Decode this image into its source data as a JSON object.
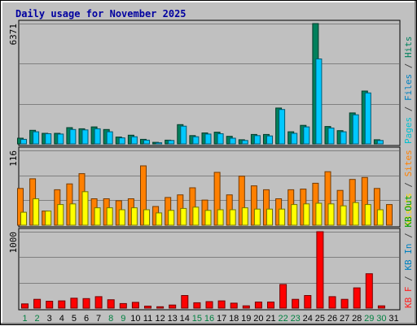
{
  "chart_data": {
    "type": "bar",
    "title": "Daily usage for November 2025",
    "x": [
      1,
      2,
      3,
      4,
      5,
      6,
      7,
      8,
      9,
      10,
      11,
      12,
      13,
      14,
      15,
      16,
      17,
      18,
      19,
      20,
      21,
      22,
      23,
      24,
      25,
      26,
      27,
      28,
      29,
      30,
      31
    ],
    "weekend_days": [
      1,
      2,
      8,
      9,
      15,
      16,
      22,
      23,
      29,
      30
    ],
    "panels": [
      {
        "id": "hits_panel",
        "ymax_label": "6371",
        "ylim": [
          0,
          6371
        ],
        "legend": [
          "Pages",
          "/",
          "Files",
          "/",
          "Hits"
        ],
        "legend_colors": [
          "#00c0d0",
          "#404040",
          "#0080c0",
          "#404040",
          "#00805c"
        ],
        "series": [
          {
            "name": "Hits",
            "color": "#00805c",
            "values": [
              300,
              720,
              560,
              560,
              860,
              800,
              900,
              760,
              360,
              460,
              240,
              80,
              200,
              1020,
              440,
              580,
              620,
              400,
              220,
              500,
              500,
              1900,
              640,
              980,
              6371,
              920,
              700,
              1640,
              2800,
              220,
              0
            ]
          },
          {
            "name": "Files",
            "color": "#00c8ff",
            "values": [
              240,
              640,
              540,
              520,
              760,
              740,
              800,
              640,
              320,
              380,
              200,
              60,
              180,
              940,
              380,
              520,
              540,
              300,
              180,
              440,
              420,
              1820,
              560,
              900,
              4500,
              840,
              640,
              1540,
              2700,
              180,
              0
            ]
          }
        ]
      },
      {
        "id": "visits_panel",
        "ymax_label": "116",
        "ylim": [
          0,
          116
        ],
        "legend": [
          "Visits",
          "/",
          "Sites"
        ],
        "legend_colors": [
          "#ffd700",
          "#404040",
          "#ff8000"
        ],
        "series": [
          {
            "name": "Sites",
            "color": "#ff8000",
            "values": [
              57,
              72,
              22,
              55,
              64,
              80,
              41,
              41,
              38,
              41,
              92,
              29,
              43,
              47,
              58,
              39,
              82,
              47,
              76,
              61,
              55,
              41,
              55,
              56,
              65,
              83,
              54,
              71,
              74,
              57,
              32
            ]
          },
          {
            "name": "Visits",
            "color": "#ffff00",
            "values": [
              20,
              41,
              22,
              32,
              33,
              52,
              27,
              27,
              24,
              27,
              24,
              19,
              23,
              26,
              28,
              23,
              24,
              24,
              27,
              25,
              25,
              25,
              32,
              33,
              34,
              33,
              30,
              35,
              32,
              24,
              0
            ]
          }
        ]
      },
      {
        "id": "kb_panel",
        "ymax_label": "1000",
        "ylim": [
          0,
          1000
        ],
        "legend": [
          "KB",
          "F",
          "/",
          "KB",
          "In",
          "/",
          "KB",
          "Out"
        ],
        "legend_colors": [
          "#ff2020",
          "#ff2020",
          "#404040",
          "#0080c0",
          "#0080c0",
          "#404040",
          "#00a000",
          "#00a000"
        ],
        "series": [
          {
            "name": "KB F",
            "color": "#ff0000",
            "values": [
              55,
              115,
              90,
              95,
              130,
              125,
              150,
              110,
              60,
              75,
              25,
              18,
              40,
              165,
              70,
              85,
              95,
              65,
              30,
              80,
              80,
              310,
              115,
              165,
              1000,
              150,
              115,
              265,
              450,
              30,
              0
            ]
          }
        ]
      }
    ]
  }
}
